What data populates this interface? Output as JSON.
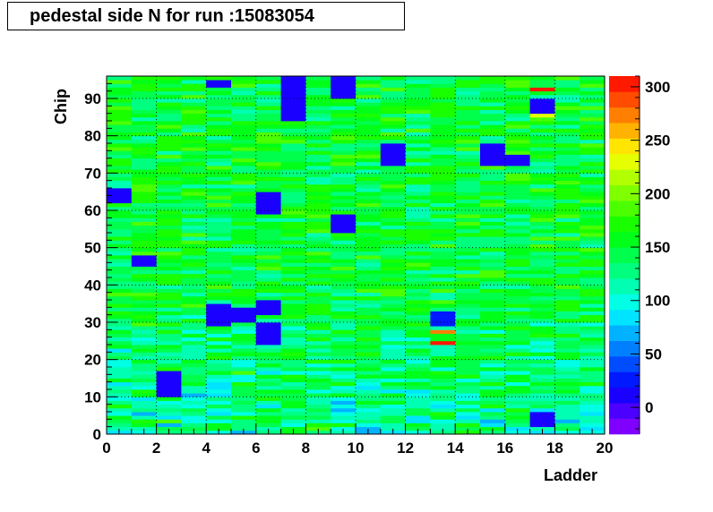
{
  "title": "pedestal side N for run :15083054",
  "chart_data": {
    "type": "heatmap",
    "title": "pedestal side N for run :15083054",
    "xlabel": "Ladder",
    "ylabel": "Chip",
    "xlim": [
      0,
      20
    ],
    "ylim": [
      0,
      96
    ],
    "zlim": [
      -25,
      310
    ],
    "x_ticks": [
      "0",
      "2",
      "4",
      "6",
      "8",
      "10",
      "12",
      "14",
      "16",
      "18",
      "20"
    ],
    "y_ticks": [
      "0",
      "10",
      "20",
      "30",
      "40",
      "50",
      "60",
      "70",
      "80",
      "90"
    ],
    "z_ticks": [
      "0",
      "50",
      "100",
      "150",
      "200",
      "250",
      "300"
    ],
    "grid": true,
    "nx": 20,
    "ny": 96,
    "typical_value": 150,
    "notable_cells": [
      {
        "ladder": 1,
        "chip_from": 62,
        "chip_to": 66,
        "value": 10
      },
      {
        "ladder": 2,
        "chip_from": 45,
        "chip_to": 48,
        "value": 15
      },
      {
        "ladder": 3,
        "chip_from": 10,
        "chip_to": 17,
        "value": 15
      },
      {
        "ladder": 5,
        "chip_from": 93,
        "chip_to": 95,
        "value": 10
      },
      {
        "ladder": 5,
        "chip_from": 29,
        "chip_to": 35,
        "value": 15
      },
      {
        "ladder": 6,
        "chip_from": 30,
        "chip_to": 34,
        "value": 10
      },
      {
        "ladder": 7,
        "chip_from": 59,
        "chip_to": 65,
        "value": 15
      },
      {
        "ladder": 7,
        "chip_from": 32,
        "chip_to": 36,
        "value": 15
      },
      {
        "ladder": 7,
        "chip_from": 24,
        "chip_to": 30,
        "value": 10
      },
      {
        "ladder": 8,
        "chip_from": 84,
        "chip_to": 96,
        "value": 10
      },
      {
        "ladder": 10,
        "chip_from": 90,
        "chip_to": 96,
        "value": 10
      },
      {
        "ladder": 10,
        "chip_from": 54,
        "chip_to": 59,
        "value": 15
      },
      {
        "ladder": 12,
        "chip_from": 72,
        "chip_to": 78,
        "value": 10
      },
      {
        "ladder": 14,
        "chip_from": 24,
        "chip_to": 25,
        "value": 310
      },
      {
        "ladder": 14,
        "chip_from": 27,
        "chip_to": 28,
        "value": 280
      },
      {
        "ladder": 14,
        "chip_from": 29,
        "chip_to": 33,
        "value": 20
      },
      {
        "ladder": 16,
        "chip_from": 72,
        "chip_to": 78,
        "value": 10
      },
      {
        "ladder": 17,
        "chip_from": 72,
        "chip_to": 75,
        "value": 10
      },
      {
        "ladder": 18,
        "chip_from": 92,
        "chip_to": 93,
        "value": 310
      },
      {
        "ladder": 18,
        "chip_from": 85,
        "chip_to": 87,
        "value": 230
      },
      {
        "ladder": 18,
        "chip_from": 2,
        "chip_to": 6,
        "value": 10
      },
      {
        "ladder": 18,
        "chip_from": 86,
        "chip_to": 90,
        "value": 10
      }
    ]
  }
}
